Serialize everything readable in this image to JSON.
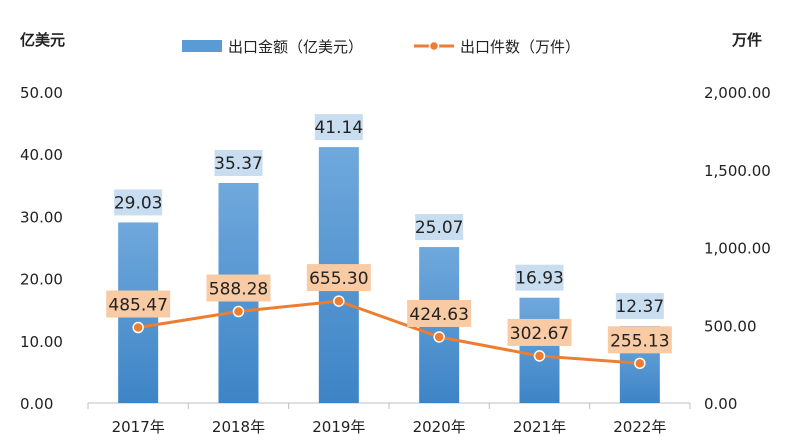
{
  "chart_data": {
    "type": "bar",
    "categories": [
      "2017年",
      "2018年",
      "2019年",
      "2020年",
      "2021年",
      "2022年"
    ],
    "series": [
      {
        "name": "出口金额（亿美元）",
        "type": "bar",
        "axis": "left",
        "color": "#5b9bd5",
        "values": [
          29.03,
          35.37,
          41.14,
          25.07,
          16.93,
          12.37
        ],
        "labels": [
          "29.03",
          "35.37",
          "41.14",
          "25.07",
          "16.93",
          "12.37"
        ]
      },
      {
        "name": "出口件数（万件）",
        "type": "line",
        "axis": "right",
        "color": "#ed7d31",
        "values": [
          485.47,
          588.28,
          655.3,
          424.63,
          302.67,
          255.13
        ],
        "labels": [
          "485.47",
          "588.28",
          "655.30",
          "424.63",
          "302.67",
          "255.13"
        ]
      }
    ],
    "y_left": {
      "unit": "亿美元",
      "ylim": [
        0,
        50
      ],
      "ticks": [
        "0.00",
        "10.00",
        "20.00",
        "30.00",
        "40.00",
        "50.00"
      ]
    },
    "y_right": {
      "unit": "万件",
      "ylim": [
        0,
        2000
      ],
      "ticks": [
        "0.00",
        "500.00",
        "1,000.00",
        "1,500.00",
        "2,000.00"
      ]
    },
    "legend_position": "top",
    "grid": false
  }
}
